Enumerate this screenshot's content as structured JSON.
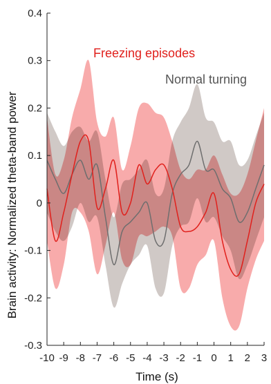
{
  "chart_data": {
    "type": "line",
    "title": "",
    "xlabel": "Time (s)",
    "ylabel": "Brain activity: Normalized theta-band power",
    "xlim": [
      -10,
      3
    ],
    "ylim": [
      -0.3,
      0.4
    ],
    "grid": false,
    "legend_placement": "top-right",
    "x_ticks": [
      "-10",
      "-9",
      "-8",
      "-7",
      "-6",
      "-5",
      "-4",
      "-3",
      "-2",
      "-1",
      "0",
      "1",
      "2",
      "3"
    ],
    "y_ticks": [
      "-0.3",
      "-0.2",
      "-0.1",
      "0",
      "0.1",
      "0.2",
      "0.3",
      "0.4"
    ],
    "x": [
      -10,
      -9.5,
      -9,
      -8.5,
      -8,
      -7.5,
      -7,
      -6.5,
      -6,
      -5.5,
      -5,
      -4.5,
      -4,
      -3.5,
      -3,
      -2.5,
      -2,
      -1.5,
      -1,
      -0.5,
      0,
      0.5,
      1,
      1.5,
      2,
      2.5,
      3
    ],
    "series": [
      {
        "name": "Freezing episodes",
        "color": "#e0201c",
        "band_color": "#f58a8a",
        "mean": [
          0.03,
          -0.08,
          -0.02,
          0.06,
          0.13,
          0.13,
          -0.01,
          0.03,
          0.09,
          -0.02,
          0.0,
          0.08,
          0.04,
          0.07,
          0.08,
          0.03,
          -0.05,
          -0.06,
          -0.05,
          -0.02,
          0.02,
          -0.08,
          -0.14,
          -0.15,
          -0.08,
          0.0,
          0.04
        ],
        "upper": [
          0.18,
          0.06,
          0.09,
          0.18,
          0.24,
          0.3,
          0.17,
          0.14,
          0.18,
          0.07,
          0.12,
          0.2,
          0.21,
          0.19,
          0.18,
          0.13,
          0.07,
          0.05,
          0.07,
          0.07,
          0.1,
          0.06,
          0.02,
          0.02,
          0.06,
          0.13,
          0.2
        ],
        "lower": [
          -0.08,
          -0.18,
          -0.13,
          -0.02,
          -0.02,
          -0.06,
          -0.15,
          -0.09,
          -0.02,
          -0.12,
          -0.13,
          -0.07,
          -0.07,
          -0.06,
          -0.05,
          -0.07,
          -0.18,
          -0.18,
          -0.13,
          -0.11,
          -0.08,
          -0.2,
          -0.26,
          -0.26,
          -0.18,
          -0.12,
          -0.08
        ]
      },
      {
        "name": "Normal turning",
        "color": "#6e6e6e",
        "band_color": "#c8c0bc",
        "mean": [
          0.09,
          0.05,
          0.02,
          0.06,
          0.09,
          0.05,
          0.08,
          -0.03,
          -0.13,
          -0.06,
          -0.04,
          -0.02,
          0.0,
          -0.08,
          -0.08,
          0.02,
          0.06,
          0.08,
          0.13,
          0.07,
          0.07,
          0.03,
          0.01,
          -0.04,
          -0.02,
          0.03,
          0.08
        ],
        "upper": [
          0.19,
          0.15,
          0.12,
          0.15,
          0.16,
          0.13,
          0.15,
          0.05,
          -0.03,
          0.04,
          0.05,
          0.07,
          0.09,
          0.02,
          0.03,
          0.13,
          0.17,
          0.2,
          0.25,
          0.18,
          0.17,
          0.13,
          0.13,
          0.08,
          0.09,
          0.14,
          0.19
        ],
        "lower": [
          -0.02,
          -0.06,
          -0.08,
          -0.05,
          0.0,
          -0.04,
          -0.03,
          -0.13,
          -0.22,
          -0.17,
          -0.13,
          -0.11,
          -0.09,
          -0.18,
          -0.19,
          -0.09,
          -0.05,
          -0.04,
          0.01,
          -0.04,
          -0.03,
          -0.07,
          -0.1,
          -0.16,
          -0.13,
          -0.08,
          -0.03
        ]
      }
    ]
  }
}
